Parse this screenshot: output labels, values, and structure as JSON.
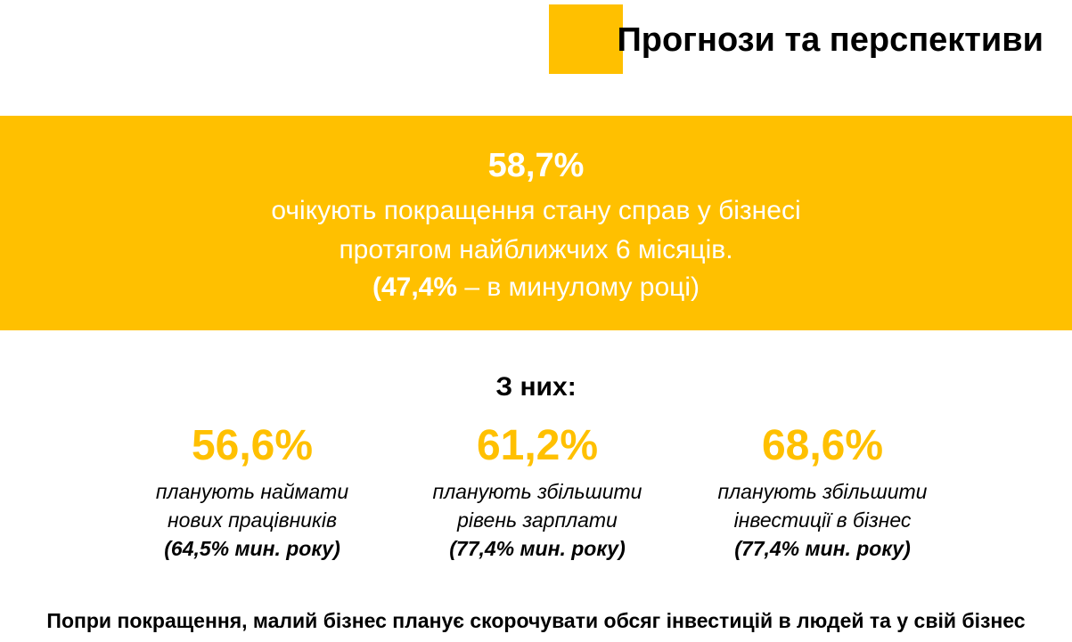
{
  "header": {
    "title": "Прогнози та перспективи"
  },
  "hero": {
    "value": "58,7%",
    "line1": "очікують покращення стану справ у бізнесі",
    "line2": "протягом найближчих 6 місяців.",
    "prev_value": "(47,4%",
    "prev_text": " – в минулому році)"
  },
  "breakdown": {
    "heading": "З них:",
    "stats": [
      {
        "value": "56,6%",
        "desc_line1": "планують наймати",
        "desc_line2": "нових працівників",
        "prev": "(64,5% мин. року)"
      },
      {
        "value": "61,2%",
        "desc_line1": "планують збільшити",
        "desc_line2": "рівень зарплати",
        "prev": "(77,4% мин. року)"
      },
      {
        "value": "68,6%",
        "desc_line1": "планують збільшити",
        "desc_line2": "інвестиції в бізнес",
        "prev": "(77,4% мин. року)"
      }
    ]
  },
  "footer": {
    "note": "Попри покращення, малий бізнес планує скорочувати обсяг інвестицій в людей та у свій бізнес"
  },
  "colors": {
    "accent": "#FFC000",
    "text": "#000000",
    "hero_text": "#FFFFFF",
    "background": "#FFFFFF"
  }
}
